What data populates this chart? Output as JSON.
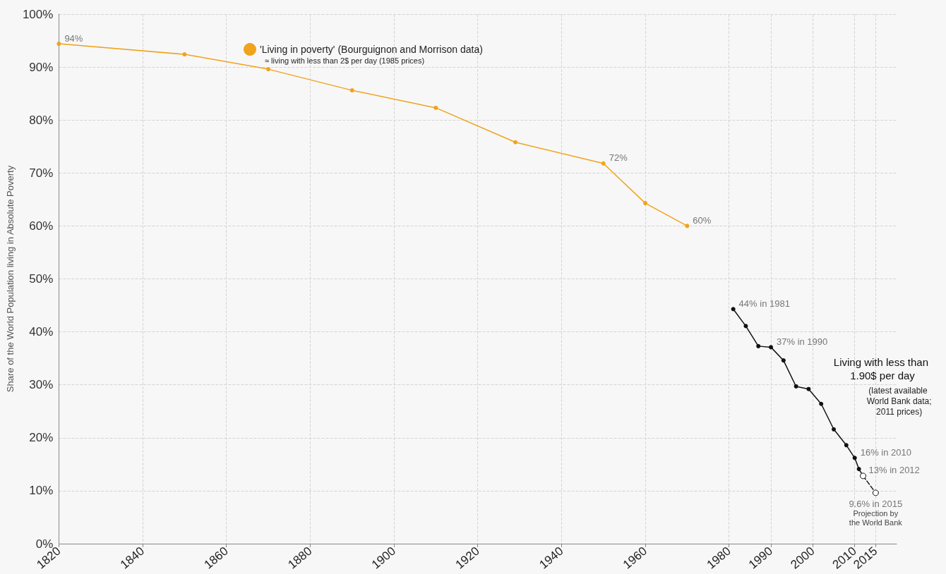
{
  "chart_data": {
    "type": "line",
    "ylabel": "Share of the World Population living in Absolute Poverty",
    "x": [
      1820,
      1850,
      1870,
      1890,
      1910,
      1929,
      1950,
      1960,
      1970
    ],
    "series": [
      {
        "name": "'Living in poverty' (Bourguignon and Morrison data)",
        "color": "#f0a31c",
        "values": [
          94.4,
          92.4,
          89.6,
          85.6,
          82.3,
          75.8,
          71.8,
          64.3,
          60.0
        ],
        "value_labels": [
          "94%",
          null,
          null,
          null,
          null,
          null,
          "72%",
          null,
          "60%"
        ]
      },
      {
        "name": "Living with less than 1.90$ per day",
        "color": "#111111",
        "x": [
          1981,
          1984,
          1987,
          1990,
          1993,
          1996,
          1999,
          2002,
          2005,
          2008,
          2010,
          2011,
          2012
        ],
        "values": [
          44.3,
          41.1,
          37.3,
          37.1,
          34.6,
          29.7,
          29.2,
          26.4,
          21.6,
          18.6,
          16.2,
          14.1,
          12.8
        ],
        "value_labels": [
          "44% in 1981",
          null,
          null,
          "37% in 1990",
          null,
          null,
          null,
          null,
          null,
          null,
          "16% in 2010",
          null,
          "13% in 2012"
        ]
      },
      {
        "name": "Projection by the World Bank",
        "color": "#111111",
        "x": [
          2012,
          2015
        ],
        "values": [
          12.8,
          9.6
        ],
        "line_style": "dashed",
        "value_labels": [
          null,
          "9.6% in 2015"
        ]
      }
    ],
    "annotations": [
      "≈ living with less than 2$ per day (1985 prices)",
      "(latest available World Bank data; 2011 prices)"
    ],
    "xlim": [
      1820,
      2020
    ],
    "xticks": [
      1820,
      1840,
      1860,
      1880,
      1900,
      1920,
      1940,
      1960,
      1980,
      1990,
      2000,
      2010,
      2015
    ],
    "ylim": [
      0,
      100
    ],
    "yticks": [
      {
        "value": 0,
        "label": "0%"
      },
      {
        "value": 10,
        "label": "10%"
      },
      {
        "value": 20,
        "label": "20%"
      },
      {
        "value": 30,
        "label": "30%"
      },
      {
        "value": 40,
        "label": "40%"
      },
      {
        "value": 50,
        "label": "50%"
      },
      {
        "value": 60,
        "label": "60%"
      },
      {
        "value": 70,
        "label": "70%"
      },
      {
        "value": 80,
        "label": "80%"
      },
      {
        "value": 90,
        "label": "90%"
      },
      {
        "value": 100,
        "label": "100%"
      }
    ],
    "grid": true,
    "legend": "top",
    "marker": "circle",
    "line_style": "solid"
  }
}
